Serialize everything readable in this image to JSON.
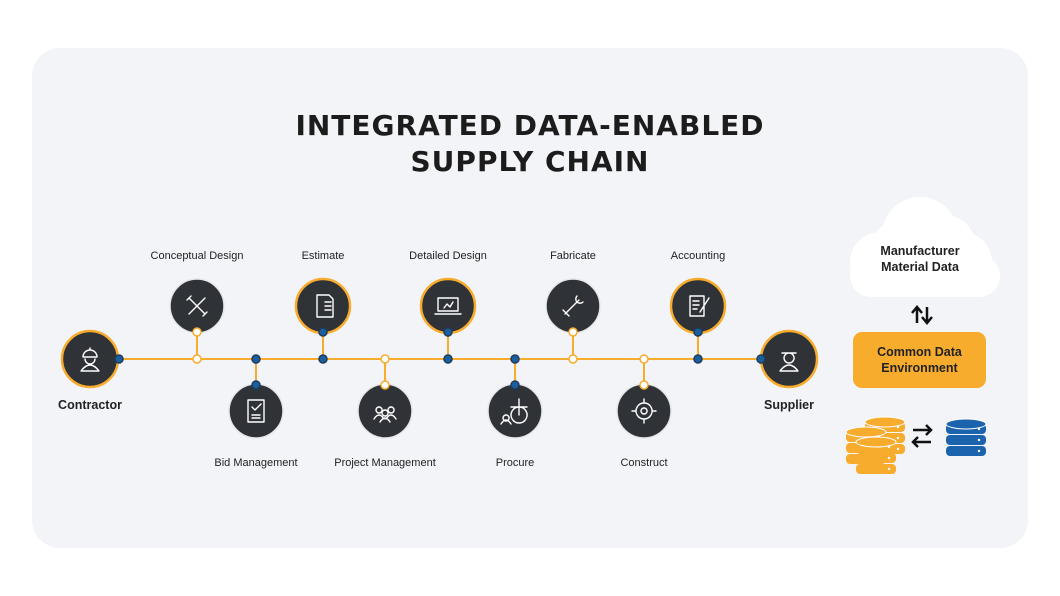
{
  "title_lines": [
    "INTEGRATED DATA-ENABLED",
    "SUPPLY CHAIN"
  ],
  "colors": {
    "accent": "#f7ac2e",
    "node": "#2f3237",
    "dot_blue": "#1b5fa0",
    "db_blue": "#1b63ad",
    "panel": "#f3f4f8"
  },
  "endpoints": [
    {
      "label": "Contractor",
      "icon": "worker-hardhat-icon"
    },
    {
      "label": "Supplier",
      "icon": "supplier-person-icon"
    }
  ],
  "stages": [
    {
      "label": "Conceptual Design",
      "icon": "pencil-ruler-icon",
      "position": "top",
      "highlighted": false
    },
    {
      "label": "Bid Management",
      "icon": "checklist-document-icon",
      "position": "bottom",
      "highlighted": false
    },
    {
      "label": "Estimate",
      "icon": "invoice-dollar-icon",
      "position": "top",
      "highlighted": true
    },
    {
      "label": "Project Management",
      "icon": "team-icon",
      "position": "bottom",
      "highlighted": false
    },
    {
      "label": "Detailed Design",
      "icon": "laptop-design-icon",
      "position": "top",
      "highlighted": true
    },
    {
      "label": "Procure",
      "icon": "globe-person-icon",
      "position": "bottom",
      "highlighted": false
    },
    {
      "label": "Fabricate",
      "icon": "wrench-hand-icon",
      "position": "top",
      "highlighted": false
    },
    {
      "label": "Construct",
      "icon": "gear-tools-icon",
      "position": "bottom",
      "highlighted": false
    },
    {
      "label": "Accounting",
      "icon": "notepad-pen-icon",
      "position": "top",
      "highlighted": true
    }
  ],
  "cloud": {
    "line1": "Manufacturer",
    "line2": "Material Data"
  },
  "cde": {
    "line1": "Common Data",
    "line2": "Environment"
  }
}
